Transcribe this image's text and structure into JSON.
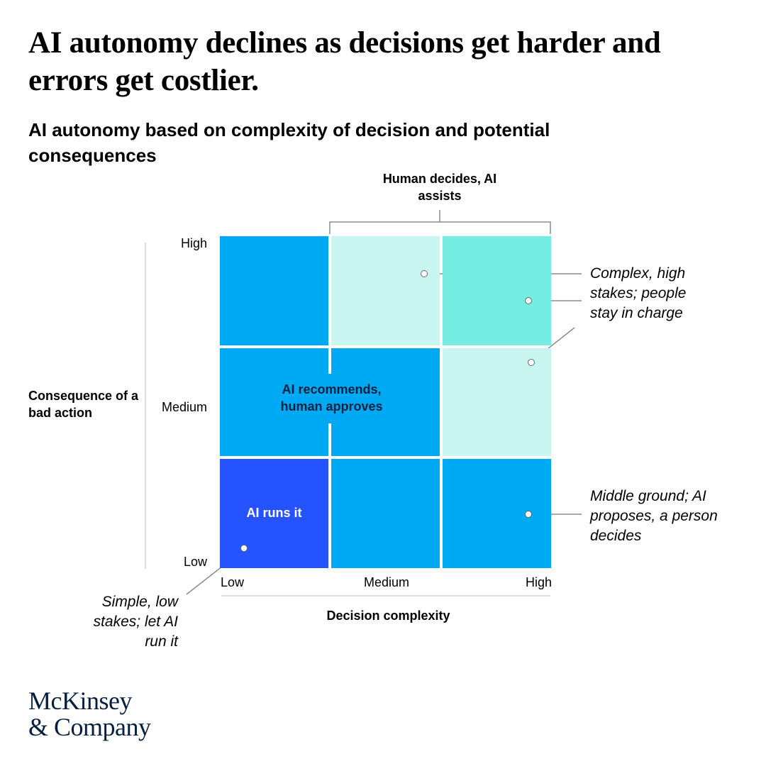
{
  "title": "AI autonomy declines as decisions get harder and errors get costlier.",
  "subtitle": "AI autonomy based on complexity of decision and potential consequences",
  "axes": {
    "x_title": "Decision complexity",
    "y_title": "Consequence of a bad action",
    "x_ticks": [
      "Low",
      "Medium",
      "High"
    ],
    "y_ticks": [
      "High",
      "Medium",
      "Low"
    ]
  },
  "zones": {
    "human_decides": "Human decides, AI assists",
    "ai_recommends": "AI recommends, human approves",
    "ai_runs": "AI runs it"
  },
  "annotations": {
    "complex_high": "Complex, high stakes; people stay in charge",
    "middle_ground": "Middle ground; AI proposes, a person decides",
    "simple_low": "Simple, low stakes; let AI run it"
  },
  "colors": {
    "ai_runs": "#2453ff",
    "ai_recommends": "#00a9f4",
    "human_decides_light": "#c9f6f1",
    "human_decides_strong": "#75ede2"
  },
  "logo": {
    "line1": "McKinsey",
    "line2": "& Company"
  }
}
